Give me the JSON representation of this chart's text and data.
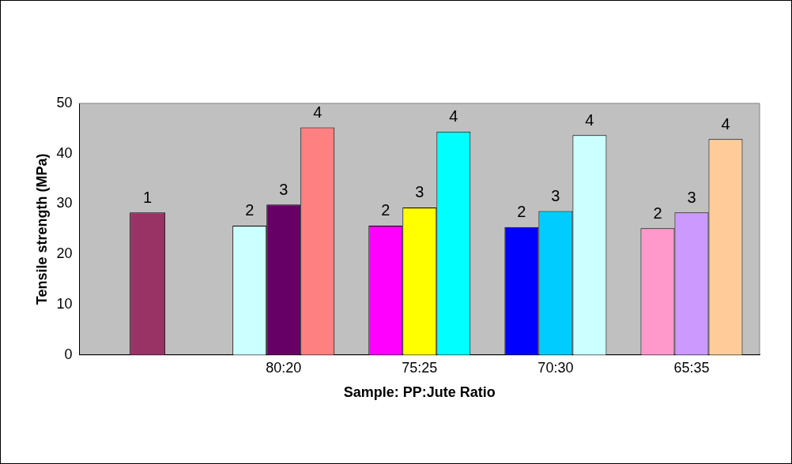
{
  "chart_data": {
    "type": "bar",
    "xlabel": "Sample: PP:Jute Ratio",
    "ylabel": "Tensile strength (MPa)",
    "categories": [
      null,
      "80:20",
      "75:25",
      "70:30",
      "65:35"
    ],
    "series": [
      {
        "name": "1",
        "colors": [
          "#993366",
          null,
          null,
          null,
          null
        ],
        "values": [
          28.3,
          null,
          null,
          null,
          null
        ]
      },
      {
        "name": "2",
        "colors": [
          null,
          "#ccffff",
          "#ff00ff",
          "#0000ff",
          "#ff99cc"
        ],
        "values": [
          null,
          25.7,
          25.7,
          25.4,
          25.2
        ]
      },
      {
        "name": "3",
        "colors": [
          null,
          "#660066",
          "#ffff00",
          "#00ccff",
          "#cc99ff"
        ],
        "values": [
          null,
          29.9,
          29.3,
          28.6,
          28.3
        ]
      },
      {
        "name": "4",
        "colors": [
          null,
          "#ff8080",
          "#00ffff",
          "#ccffff",
          "#ffcc99"
        ],
        "values": [
          null,
          45.2,
          44.4,
          43.7,
          42.9
        ]
      }
    ],
    "ylim": [
      0,
      50
    ],
    "yticks": [
      0,
      10,
      20,
      30,
      40,
      50
    ],
    "grid": false,
    "legend": false
  }
}
